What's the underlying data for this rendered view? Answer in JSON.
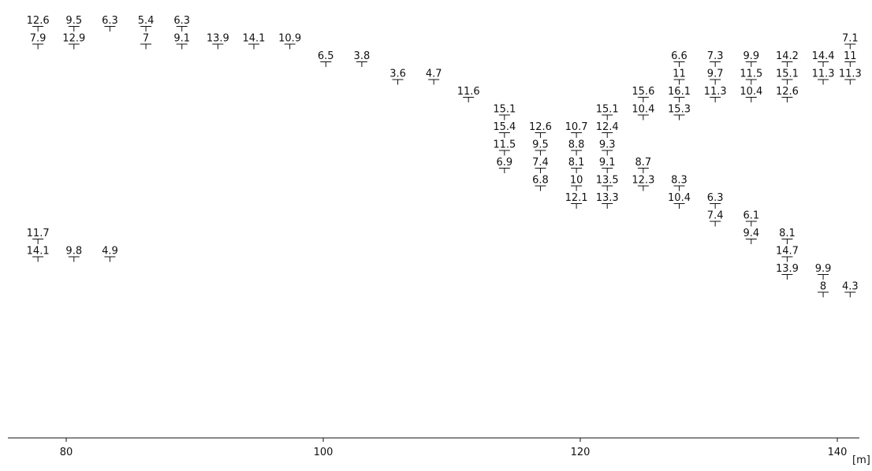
{
  "chart_data": {
    "type": "scatter",
    "title": "",
    "xlabel": "",
    "ylabel": "",
    "x_unit": "[m]",
    "xlim": [
      75.5,
      141.4
    ],
    "xticks": [
      80,
      100,
      120,
      140
    ],
    "grid": false,
    "rows": [
      {
        "x": [
          77.8,
          80.6,
          83.4,
          86.2,
          89.0
        ],
        "labels": [
          "12.6",
          "9.5",
          "6.3",
          "5.4",
          "6.3"
        ]
      },
      {
        "x": [
          77.8,
          80.6,
          86.2,
          89.0,
          91.8,
          94.6,
          97.4,
          141.0
        ],
        "labels": [
          "7.9",
          "12.9",
          "7",
          "9.1",
          "13.9",
          "14.1",
          "10.9",
          "7.1"
        ]
      },
      {
        "x": [
          100.2,
          103.0,
          127.7,
          130.5,
          133.3,
          136.1,
          138.9,
          141.0
        ],
        "labels": [
          "6.5",
          "3.8",
          "6.6",
          "7.3",
          "9.9",
          "14.2",
          "14.4",
          "11"
        ]
      },
      {
        "x": [
          105.8,
          108.6,
          127.7,
          130.5,
          133.3,
          136.1,
          138.9,
          141.0
        ],
        "labels": [
          "3.6",
          "4.7",
          "11",
          "9.7",
          "11.5",
          "15.1",
          "11.3",
          "11.3"
        ]
      },
      {
        "x": [
          111.3,
          124.9,
          127.7,
          130.5,
          133.3,
          136.1
        ],
        "labels": [
          "11.6",
          "15.6",
          "16.1",
          "11.3",
          "10.4",
          "12.6"
        ]
      },
      {
        "x": [
          114.1,
          122.1,
          124.9,
          127.7
        ],
        "labels": [
          "15.1",
          "15.1",
          "10.4",
          "15.3"
        ]
      },
      {
        "x": [
          114.1,
          116.9,
          119.7,
          122.1
        ],
        "labels": [
          "15.4",
          "12.6",
          "10.7",
          "12.4"
        ]
      },
      {
        "x": [
          114.1,
          116.9,
          119.7,
          122.1
        ],
        "labels": [
          "11.5",
          "9.5",
          "8.8",
          "9.3"
        ]
      },
      {
        "x": [
          114.1,
          116.9,
          119.7,
          122.1,
          124.9
        ],
        "labels": [
          "6.9",
          "7.4",
          "8.1",
          "9.1",
          "8.7"
        ]
      },
      {
        "x": [
          116.9,
          119.7,
          122.1,
          124.9,
          127.7
        ],
        "labels": [
          "6.8",
          "10",
          "13.5",
          "12.3",
          "8.3"
        ]
      },
      {
        "x": [
          119.7,
          122.1,
          127.7,
          130.5
        ],
        "labels": [
          "12.1",
          "13.3",
          "10.4",
          "6.3"
        ]
      },
      {
        "x": [
          130.5,
          133.3
        ],
        "labels": [
          "7.4",
          "6.1"
        ]
      },
      {
        "x": [
          77.8,
          133.3,
          136.1
        ],
        "labels": [
          "11.7",
          "9.4",
          "8.1"
        ]
      },
      {
        "x": [
          77.8,
          80.6,
          83.4,
          136.1
        ],
        "labels": [
          "14.1",
          "9.8",
          "4.9",
          "14.7"
        ]
      },
      {
        "x": [
          136.1,
          138.9
        ],
        "labels": [
          "13.9",
          "9.9"
        ]
      },
      {
        "x": [
          138.9,
          141.0
        ],
        "labels": [
          "8",
          "4.3"
        ]
      }
    ]
  }
}
